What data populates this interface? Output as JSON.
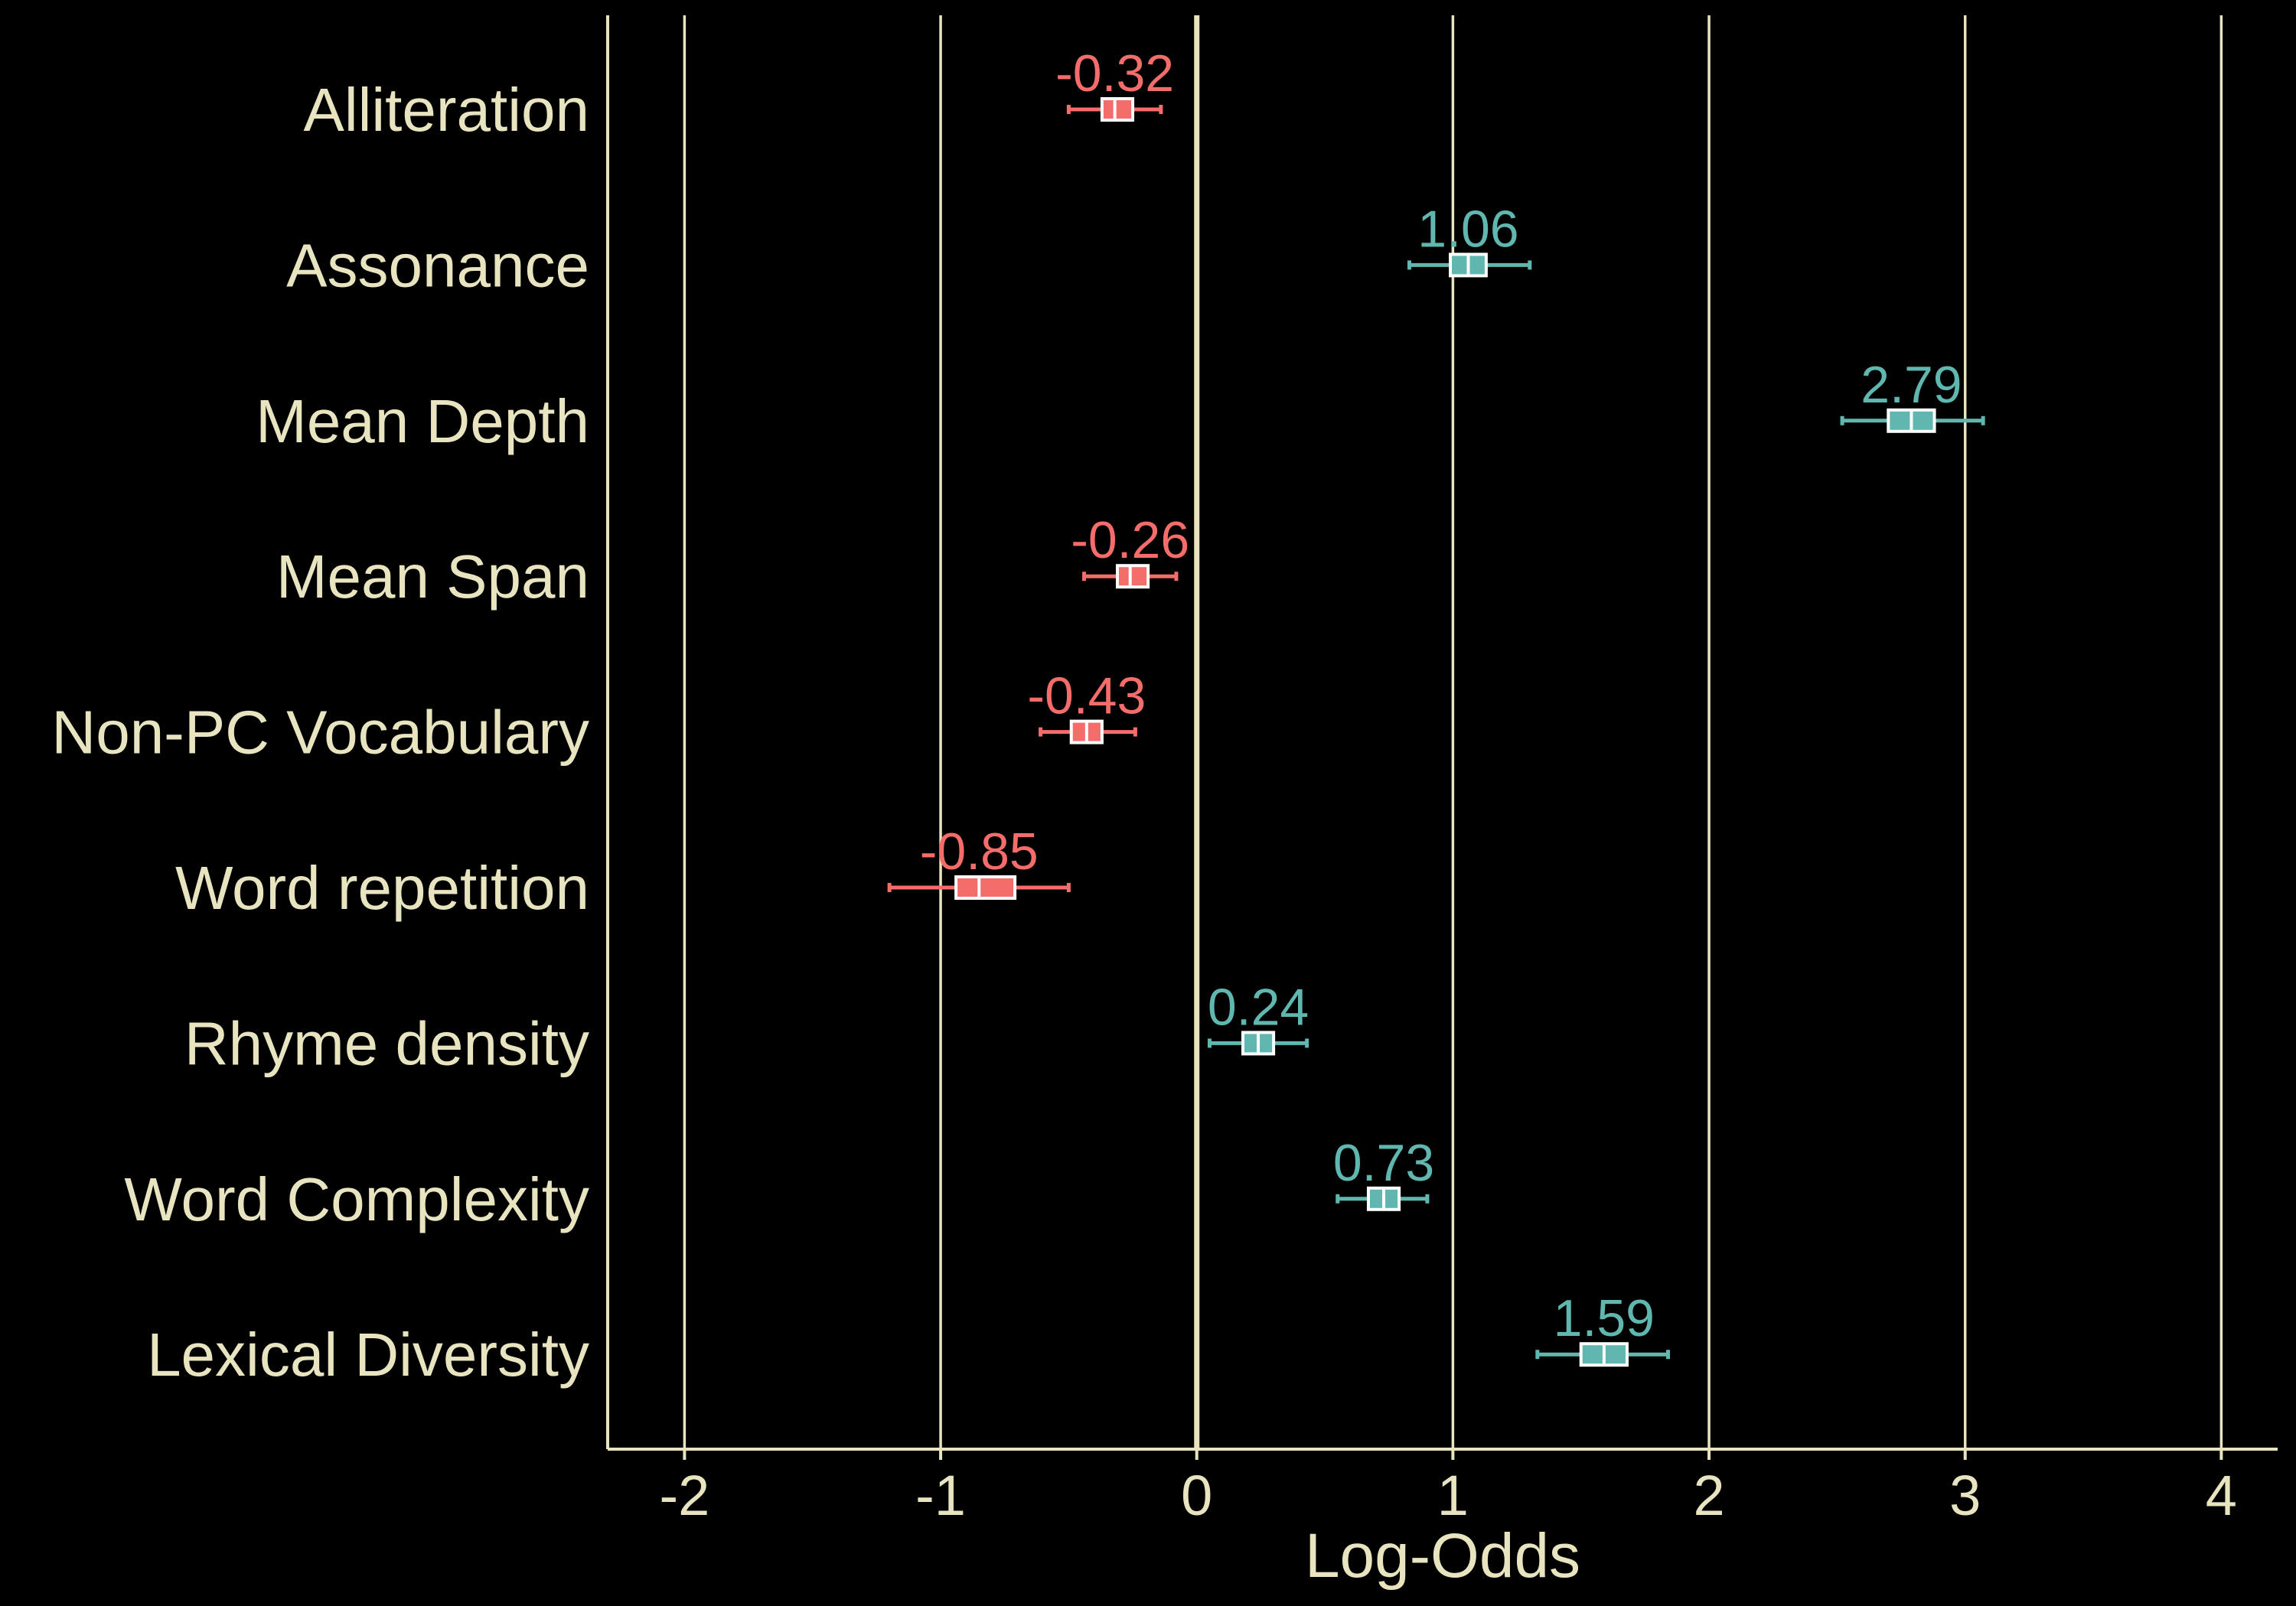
{
  "chart_data": {
    "type": "forest",
    "xlabel": "Log-Odds",
    "xlim": [
      -2.3,
      4.22
    ],
    "xticks": [
      -2,
      -1,
      0,
      1,
      2,
      3,
      4
    ],
    "tick_labels": [
      "-2",
      "-1",
      "0",
      "1",
      "2",
      "3",
      "4"
    ],
    "grid": "vertical",
    "colors": {
      "background": "#000000",
      "foreground": "#e8e4c0",
      "negative": "#f46d6a",
      "positive": "#5fb7b0",
      "box_stroke": "#ffffff"
    },
    "rows": [
      {
        "name": "Alliteration",
        "value": -0.32,
        "label": "-0.32",
        "ci": [
          -0.5,
          -0.14
        ],
        "box": [
          -0.37,
          -0.25
        ]
      },
      {
        "name": "Assonance",
        "value": 1.06,
        "label": "1.06",
        "ci": [
          0.83,
          1.3
        ],
        "box": [
          0.99,
          1.13
        ]
      },
      {
        "name": "Mean Depth",
        "value": 2.79,
        "label": "2.79",
        "ci": [
          2.52,
          3.07
        ],
        "box": [
          2.7,
          2.88
        ]
      },
      {
        "name": "Mean Span",
        "value": -0.26,
        "label": "-0.26",
        "ci": [
          -0.44,
          -0.08
        ],
        "box": [
          -0.31,
          -0.19
        ]
      },
      {
        "name": "Non-PC Vocabulary",
        "value": -0.43,
        "label": "-0.43",
        "ci": [
          -0.61,
          -0.24
        ],
        "box": [
          -0.49,
          -0.37
        ]
      },
      {
        "name": "Word repetition",
        "value": -0.85,
        "label": "-0.85",
        "ci": [
          -1.2,
          -0.5
        ],
        "box": [
          -0.94,
          -0.71
        ]
      },
      {
        "name": "Rhyme density",
        "value": 0.24,
        "label": "0.24",
        "ci": [
          0.05,
          0.43
        ],
        "box": [
          0.18,
          0.3
        ]
      },
      {
        "name": "Word Complexity",
        "value": 0.73,
        "label": "0.73",
        "ci": [
          0.55,
          0.9
        ],
        "box": [
          0.67,
          0.79
        ]
      },
      {
        "name": "Lexical Diversity",
        "value": 1.59,
        "label": "1.59",
        "ci": [
          1.33,
          1.84
        ],
        "box": [
          1.5,
          1.68
        ]
      }
    ]
  }
}
